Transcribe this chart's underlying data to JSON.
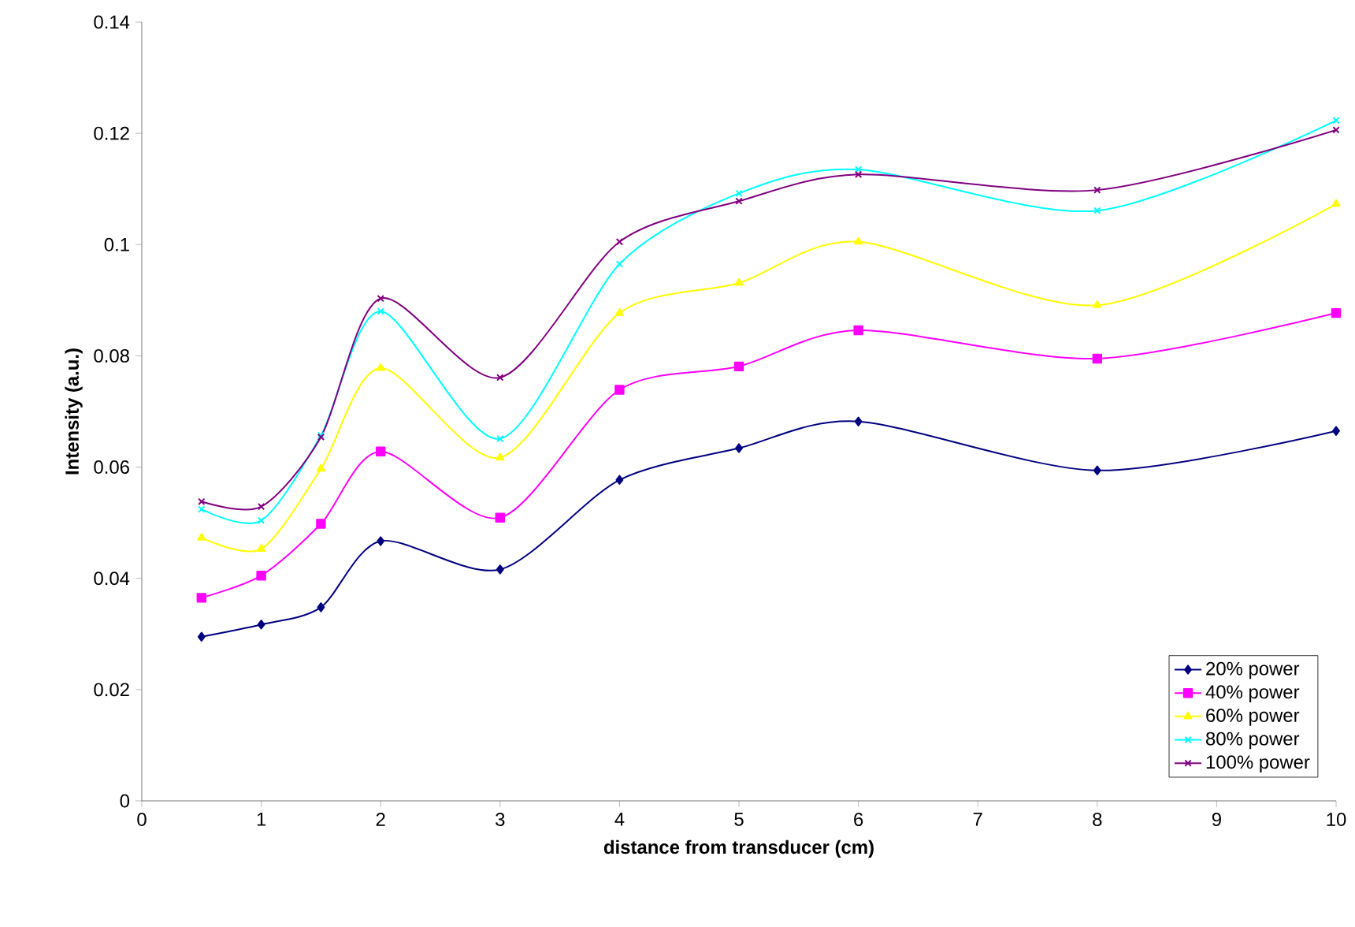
{
  "chart_data": {
    "type": "line",
    "xlabel": "distance from transducer (cm)",
    "ylabel": "Intensity (a.u.)",
    "x": [
      0.5,
      1,
      1.5,
      2,
      3,
      4,
      5,
      6,
      8,
      10
    ],
    "xlim": [
      0,
      10
    ],
    "xticks": [
      0,
      1,
      2,
      3,
      4,
      5,
      6,
      7,
      8,
      9,
      10
    ],
    "ylim": [
      0,
      0.14
    ],
    "yticks": [
      0,
      0.02,
      0.04,
      0.06,
      0.08,
      0.1,
      0.12,
      0.14
    ],
    "legend": "bottom right",
    "grid": false,
    "series": [
      {
        "name": "20% power",
        "color": "#000080",
        "marker": "diamond",
        "values": [
          0.0295,
          0.0317,
          0.0348,
          0.0467,
          0.0416,
          0.0577,
          0.0634,
          0.0682,
          0.0594,
          0.0665
        ]
      },
      {
        "name": "40% power",
        "color": "#ff00ff",
        "marker": "square",
        "values": [
          0.0365,
          0.0405,
          0.0498,
          0.0628,
          0.0509,
          0.0739,
          0.0781,
          0.0846,
          0.0795,
          0.0877
        ]
      },
      {
        "name": "60% power",
        "color": "#ffff00",
        "marker": "triangle",
        "values": [
          0.0473,
          0.0453,
          0.0597,
          0.0778,
          0.0617,
          0.0877,
          0.0931,
          0.1005,
          0.0891,
          0.1073
        ]
      },
      {
        "name": "80% power",
        "color": "#00ffff",
        "marker": "cross",
        "values": [
          0.0524,
          0.0504,
          0.0657,
          0.088,
          0.0651,
          0.0965,
          0.1092,
          0.1135,
          0.1061,
          0.1223
        ]
      },
      {
        "name": "100% power",
        "color": "#800080",
        "marker": "cross",
        "values": [
          0.0538,
          0.0529,
          0.0654,
          0.0903,
          0.0761,
          0.1005,
          0.1078,
          0.1126,
          0.1098,
          0.1206
        ]
      }
    ]
  }
}
